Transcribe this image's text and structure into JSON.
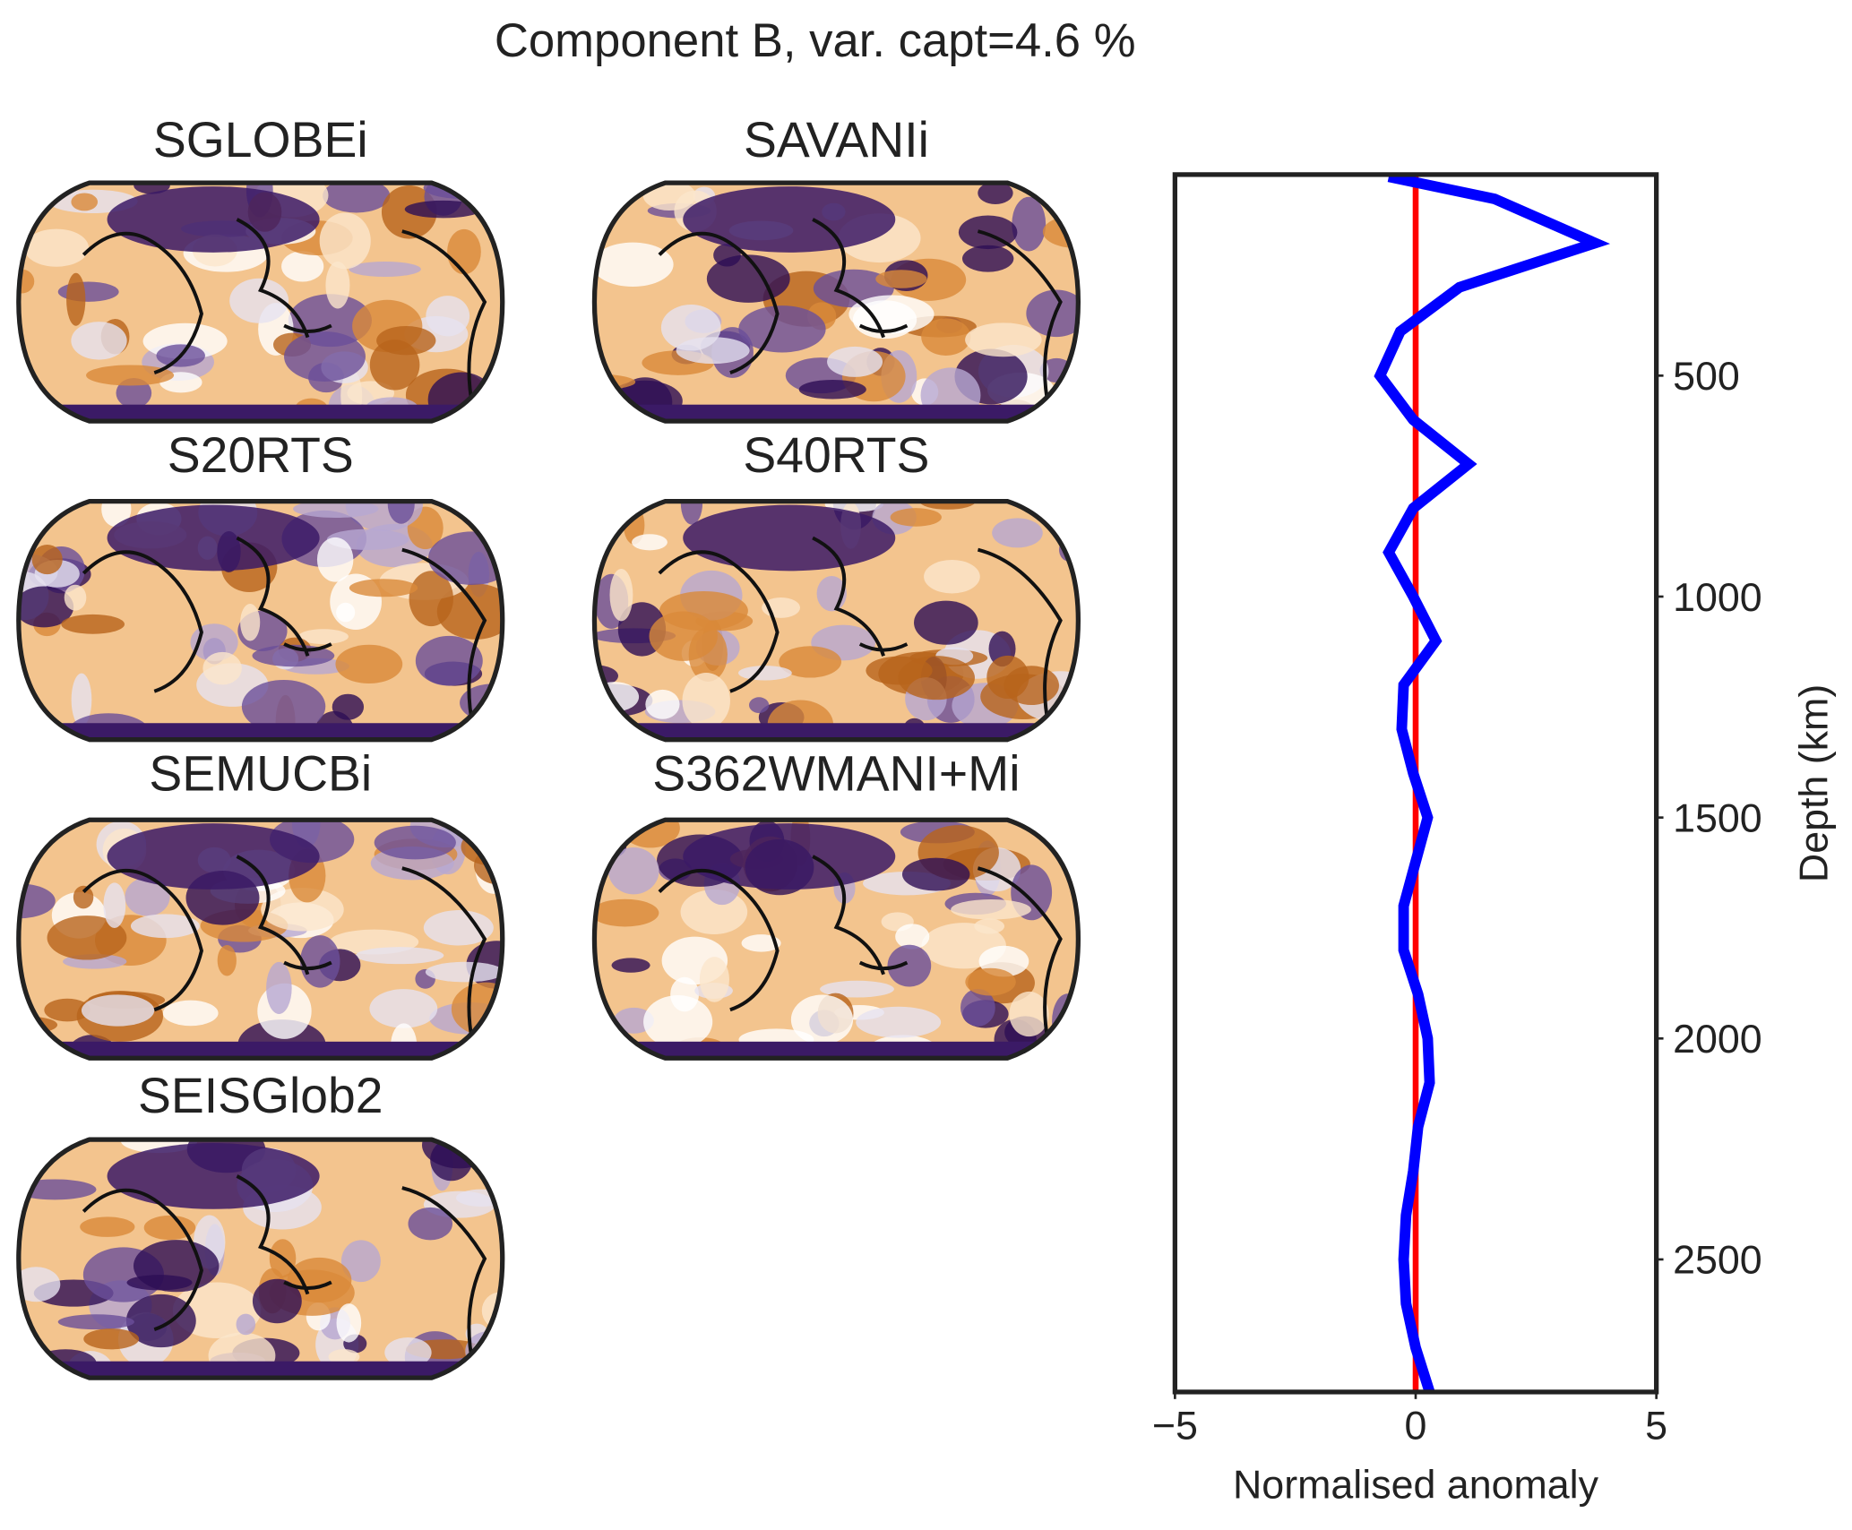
{
  "title": "Component B, var. capt=4.6 %",
  "maps": [
    "SGLOBEi",
    "SAVANIi",
    "S20RTS",
    "S40RTS",
    "SEMUCBi",
    "S362WMANI+Mi",
    "SEISGlob2"
  ],
  "chart_data": {
    "type": "line",
    "xlabel": "Normalised anomaly",
    "ylabel": "Depth (km)",
    "xlim": [
      -5,
      5
    ],
    "xticks": [
      {
        "value": -5,
        "label": "−5"
      },
      0,
      5
    ],
    "ylim": [
      2800,
      45
    ],
    "yticks": [
      500,
      1000,
      1500,
      2000,
      2500
    ],
    "reference_line": {
      "value": 0,
      "color": "#ff0000"
    },
    "series": [
      {
        "color": "#0000ff",
        "x": [
          50,
          100,
          200,
          300,
          400,
          500,
          600,
          700,
          800,
          900,
          1000,
          1100,
          1200,
          1300,
          1400,
          1500,
          1600,
          1700,
          1800,
          1900,
          2000,
          2100,
          2200,
          2300,
          2400,
          2500,
          2600,
          2700,
          2800
        ],
        "values": [
          -0.56,
          1.64,
          3.73,
          0.91,
          -0.32,
          -0.74,
          -0.05,
          1.1,
          -0.05,
          -0.56,
          -0.05,
          0.42,
          -0.25,
          -0.29,
          -0.05,
          0.25,
          0,
          -0.25,
          -0.25,
          0.05,
          0.25,
          0.29,
          0.05,
          -0.05,
          -0.2,
          -0.25,
          -0.2,
          0,
          0.29
        ]
      }
    ]
  }
}
